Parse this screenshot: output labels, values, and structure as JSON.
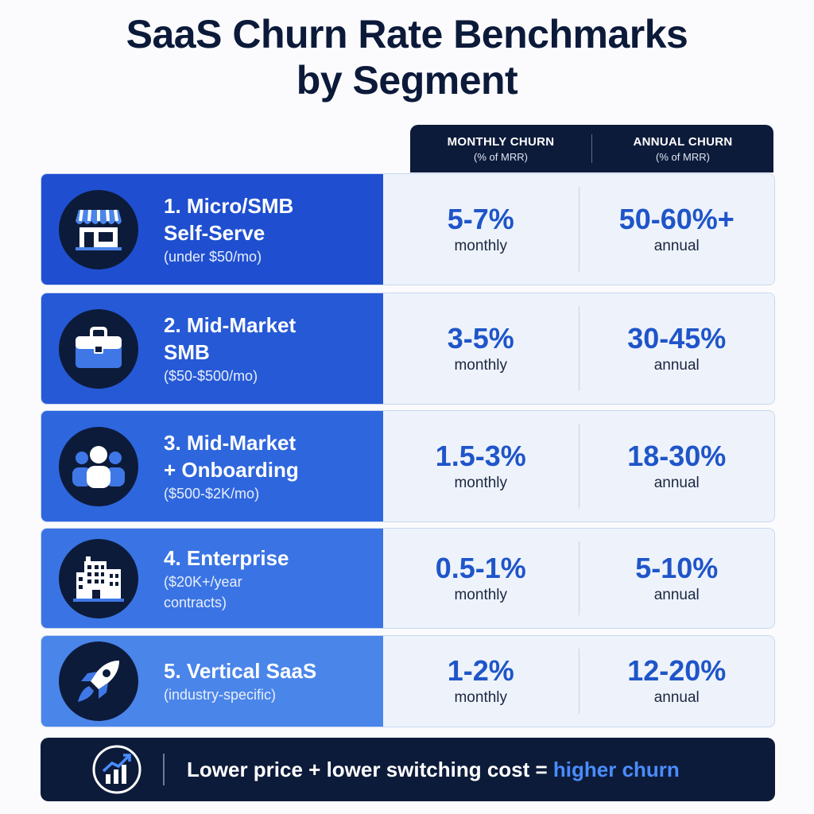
{
  "title": {
    "line1": "SaaS Churn Rate Benchmarks",
    "line2": "by Segment"
  },
  "columns": [
    {
      "title": "MONTHLY CHURN",
      "sub": "(% of MRR)"
    },
    {
      "title": "ANNUAL CHURN",
      "sub": "(% of MRR)"
    }
  ],
  "rows": [
    {
      "name": "1. Micro/SMB",
      "name2": "Self-Serve",
      "sub": "(under $50/mo)",
      "sub2": "",
      "icon": "storefront-icon",
      "monthly": "5-7%",
      "monthly_unit": "monthly",
      "annual": "50-60%+",
      "annual_unit": "annual",
      "color": "#1f4fd0"
    },
    {
      "name": "2. Mid-Market",
      "name2": "SMB",
      "sub": "($50-$500/mo)",
      "sub2": "",
      "icon": "briefcase-icon",
      "monthly": "3-5%",
      "monthly_unit": "monthly",
      "annual": "30-45%",
      "annual_unit": "annual",
      "color": "#2559d6"
    },
    {
      "name": "3. Mid-Market",
      "name2": "+ Onboarding",
      "sub": "($500-$2K/mo)",
      "sub2": "",
      "icon": "users-icon",
      "monthly": "1.5-3%",
      "monthly_unit": "monthly",
      "annual": "18-30%",
      "annual_unit": "annual",
      "color": "#2e66de"
    },
    {
      "name": "4. Enterprise",
      "name2": "",
      "sub": "($20K+/year",
      "sub2": "contracts)",
      "icon": "building-icon",
      "monthly": "0.5-1%",
      "monthly_unit": "monthly",
      "annual": "5-10%",
      "annual_unit": "annual",
      "color": "#3a74e4"
    },
    {
      "name": "5. Vertical SaaS",
      "name2": "",
      "sub": "(industry-specific)",
      "sub2": "",
      "icon": "rocket-icon",
      "monthly": "1-2%",
      "monthly_unit": "monthly",
      "annual": "12-20%",
      "annual_unit": "annual",
      "color": "#4a85ea"
    }
  ],
  "footer": {
    "text": "Lower price + lower switching cost = ",
    "highlight": "higher churn",
    "icon": "growth-chart-icon"
  }
}
